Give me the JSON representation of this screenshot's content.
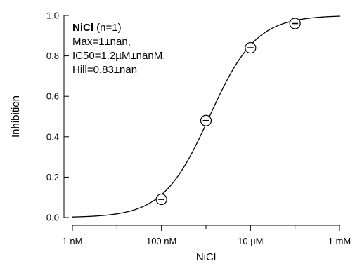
{
  "chart_data": {
    "type": "scatter",
    "xscale": "log",
    "xlabel": "NiCl",
    "ylabel": "Inhibition",
    "xlim": [
      1e-09,
      0.001
    ],
    "ylim": [
      0.0,
      1.0
    ],
    "x_ticks": [
      {
        "value": 1e-09,
        "label": "1 nM"
      },
      {
        "value": 1e-07,
        "label": "100 nM"
      },
      {
        "value": 1e-05,
        "label": "10 µM"
      },
      {
        "value": 0.001,
        "label": "1 mM"
      }
    ],
    "y_ticks": [
      {
        "value": 0.0,
        "label": "0.0"
      },
      {
        "value": 0.2,
        "label": "0.2"
      },
      {
        "value": 0.4,
        "label": "0.4"
      },
      {
        "value": 0.6,
        "label": "0.6"
      },
      {
        "value": 0.8,
        "label": "0.8"
      },
      {
        "value": 1.0,
        "label": "1.0"
      }
    ],
    "grid": false,
    "series": [
      {
        "x": [
          1e-07,
          1e-06,
          1e-05,
          0.0001
        ],
        "y": [
          0.09,
          0.48,
          0.84,
          0.96
        ]
      }
    ],
    "fit": {
      "model": "hill",
      "max": 1,
      "ic50": 1.2e-06,
      "hill": 0.83
    },
    "annotation": {
      "name": "NiCl",
      "n_text": " (n=1)",
      "lines": [
        "Max=1±nan,",
        "IC50=1.2µM±nanM,",
        "Hill=0.83±nan"
      ]
    }
  }
}
